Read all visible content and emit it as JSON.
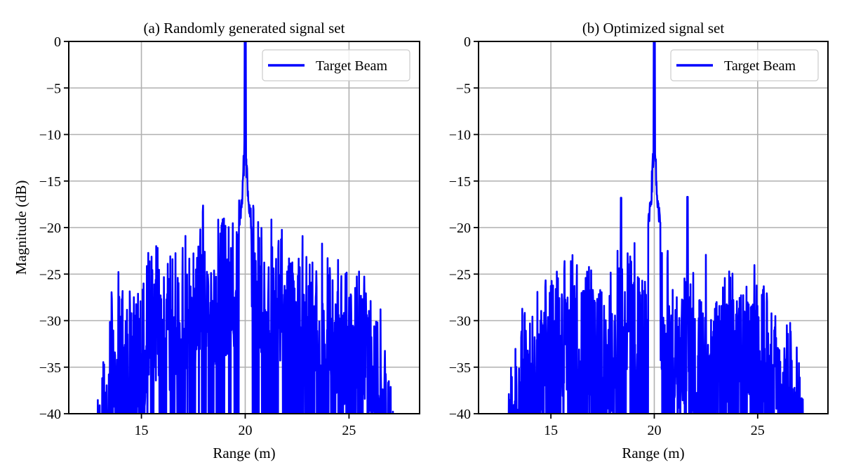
{
  "chart_data": [
    {
      "type": "line",
      "title": "(a) Randomly generated signal set",
      "xlabel": "Range (m)",
      "ylabel": "Magnitude (dB)",
      "xlim": [
        11.5,
        28.4
      ],
      "ylim": [
        -40,
        0
      ],
      "xticks": [
        15,
        20,
        25
      ],
      "xtick_labels": [
        "15",
        "20",
        "25"
      ],
      "yticks": [
        0,
        -5,
        -10,
        -15,
        -20,
        -25,
        -30,
        -35,
        -40
      ],
      "ytick_labels": [
        "0",
        "−5",
        "−10",
        "−15",
        "−20",
        "−25",
        "−30",
        "−35",
        "−40"
      ],
      "grid": true,
      "legend": {
        "entries": [
          "Target Beam"
        ],
        "placement": "upper-right"
      },
      "series": [
        {
          "name": "Target Beam",
          "color": "#0000ff",
          "x_range": [
            12.7,
            27.3
          ],
          "main_peak": {
            "x": 20.0,
            "y": 0
          },
          "sidelobe_envelope": {
            "x": [
              12.7,
              13.0,
              13.5,
              14.0,
              14.5,
              15.0,
              15.5,
              16.0,
              16.5,
              17.0,
              17.5,
              18.0,
              18.5,
              19.0,
              19.5,
              19.8,
              20.2,
              20.5,
              21.0,
              21.5,
              22.0,
              22.5,
              23.0,
              23.5,
              24.0,
              24.5,
              25.0,
              25.5,
              26.0,
              26.5,
              27.0,
              27.3
            ],
            "y": [
              -38.5,
              -32,
              -27,
              -24,
              -25,
              -25,
              -21,
              -21,
              -22,
              -20,
              -19,
              -17.5,
              -19,
              -18,
              -19,
              -16,
              -15,
              -17.5,
              -18,
              -19,
              -20,
              -21,
              -20,
              -22,
              -21,
              -22.5,
              -25,
              -24,
              -25,
              -28,
              -33,
              -39
            ]
          },
          "floor": -40
        }
      ]
    },
    {
      "type": "line",
      "title": "(b) Optimized signal set",
      "xlabel": "Range (m)",
      "ylabel": "",
      "xlim": [
        11.5,
        28.4
      ],
      "ylim": [
        -40,
        0
      ],
      "xticks": [
        15,
        20,
        25
      ],
      "xtick_labels": [
        "15",
        "20",
        "25"
      ],
      "yticks": [
        0,
        -5,
        -10,
        -15,
        -20,
        -25,
        -30,
        -35,
        -40
      ],
      "ytick_labels": [
        "0",
        "−5",
        "−10",
        "−15",
        "−20",
        "−25",
        "−30",
        "−35",
        "−40"
      ],
      "grid": true,
      "legend": {
        "entries": [
          "Target Beam"
        ],
        "placement": "upper-right"
      },
      "series": [
        {
          "name": "Target Beam",
          "color": "#0000ff",
          "x_range": [
            12.7,
            27.3
          ],
          "main_peak": {
            "x": 20.0,
            "y": 0
          },
          "secondary_peaks": [
            {
              "x": 18.4,
              "y": -16.8
            },
            {
              "x": 21.6,
              "y": -16.7
            }
          ],
          "sidelobe_envelope": {
            "x": [
              12.7,
              13.0,
              13.5,
              14.0,
              14.5,
              15.0,
              15.5,
              16.0,
              16.5,
              17.0,
              17.5,
              18.0,
              18.5,
              19.0,
              19.5,
              19.8,
              20.2,
              20.5,
              21.0,
              21.5,
              22.0,
              22.5,
              23.0,
              23.5,
              24.0,
              24.5,
              25.0,
              25.5,
              26.0,
              26.5,
              27.0,
              27.3
            ],
            "y": [
              -40,
              -32.5,
              -29,
              -27,
              -26,
              -23,
              -23.5,
              -22,
              -25,
              -23,
              -24,
              -25,
              -19,
              -20.5,
              -22,
              -20,
              -20.5,
              -21,
              -24,
              -23,
              -24,
              -22.5,
              -25,
              -23,
              -24,
              -23,
              -23,
              -26.5,
              -27,
              -28.5,
              -33,
              -40
            ]
          },
          "floor": -40
        }
      ]
    }
  ]
}
